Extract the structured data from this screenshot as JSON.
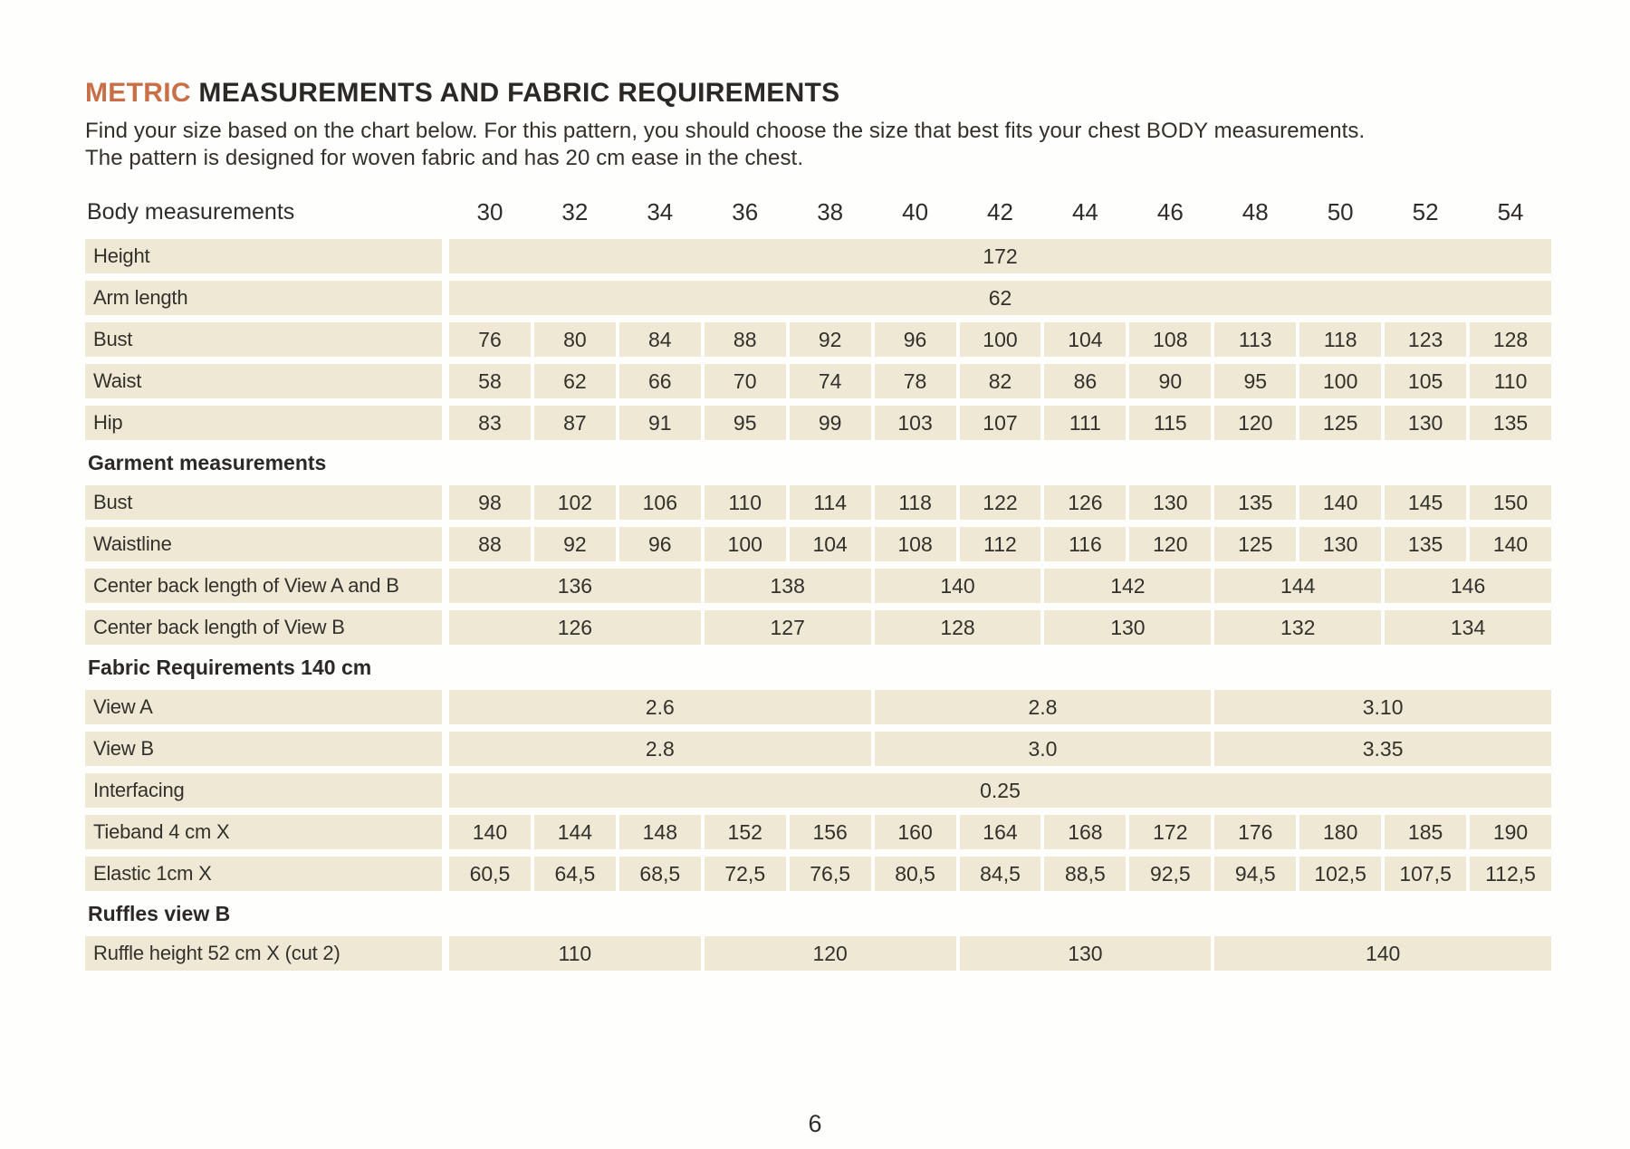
{
  "page": {
    "number": "6"
  },
  "colors": {
    "accent": "#C96F48",
    "cell_bg": "#EFE8D4",
    "text": "#2E2C29"
  },
  "header": {
    "title_accent": "METRIC",
    "title_rest": " MEASUREMENTS AND FABRIC REQUIREMENTS",
    "intro_line1": "Find your size based on the chart below. For this pattern, you should choose the size that best fits your chest BODY measurements.",
    "intro_line2": "The pattern is designed for woven fabric and has 20 cm ease in the chest."
  },
  "table": {
    "corner_label": "Body measurements",
    "sizes": [
      "30",
      "32",
      "34",
      "36",
      "38",
      "40",
      "42",
      "44",
      "46",
      "48",
      "50",
      "52",
      "54"
    ],
    "sections": [
      {
        "heading": null,
        "rows": [
          {
            "label": "Height",
            "cells": [
              [
                "172",
                13
              ]
            ]
          },
          {
            "label": "Arm length",
            "cells": [
              [
                "62",
                13
              ]
            ]
          },
          {
            "label": "Bust",
            "values": [
              "76",
              "80",
              "84",
              "88",
              "92",
              "96",
              "100",
              "104",
              "108",
              "113",
              "118",
              "123",
              "128"
            ]
          },
          {
            "label": "Waist",
            "values": [
              "58",
              "62",
              "66",
              "70",
              "74",
              "78",
              "82",
              "86",
              "90",
              "95",
              "100",
              "105",
              "110"
            ]
          },
          {
            "label": "Hip",
            "values": [
              "83",
              "87",
              "91",
              "95",
              "99",
              "103",
              "107",
              "111",
              "115",
              "120",
              "125",
              "130",
              "135"
            ]
          }
        ]
      },
      {
        "heading": "Garment measurements",
        "rows": [
          {
            "label": "Bust",
            "values": [
              "98",
              "102",
              "106",
              "110",
              "114",
              "118",
              "122",
              "126",
              "130",
              "135",
              "140",
              "145",
              "150"
            ]
          },
          {
            "label": "Waistline",
            "values": [
              "88",
              "92",
              "96",
              "100",
              "104",
              "108",
              "112",
              "116",
              "120",
              "125",
              "130",
              "135",
              "140"
            ]
          },
          {
            "label": "Center back length of View A and B",
            "cells": [
              [
                "136",
                3
              ],
              [
                "138",
                2
              ],
              [
                "140",
                2
              ],
              [
                "142",
                2
              ],
              [
                "144",
                2
              ],
              [
                "146",
                2
              ]
            ]
          },
          {
            "label": "Center back length of View  B",
            "cells": [
              [
                "126",
                3
              ],
              [
                "127",
                2
              ],
              [
                "128",
                2
              ],
              [
                "130",
                2
              ],
              [
                "132",
                2
              ],
              [
                "134",
                2
              ]
            ]
          }
        ]
      },
      {
        "heading": "Fabric Requirements 140 cm",
        "rows": [
          {
            "label": "View A",
            "cells": [
              [
                "2.6",
                5
              ],
              [
                "2.8",
                4
              ],
              [
                "3.10",
                4
              ]
            ]
          },
          {
            "label": "View B",
            "cells": [
              [
                "2.8",
                5
              ],
              [
                "3.0",
                4
              ],
              [
                "3.35",
                4
              ]
            ]
          },
          {
            "label": "Interfacing",
            "cells": [
              [
                "0.25",
                13
              ]
            ]
          },
          {
            "label": "Tieband 4 cm X",
            "values": [
              "140",
              "144",
              "148",
              "152",
              "156",
              "160",
              "164",
              "168",
              "172",
              "176",
              "180",
              "185",
              "190"
            ]
          },
          {
            "label": "Elastic 1cm X",
            "values": [
              "60,5",
              "64,5",
              "68,5",
              "72,5",
              "76,5",
              "80,5",
              "84,5",
              "88,5",
              "92,5",
              "94,5",
              "102,5",
              "107,5",
              "112,5"
            ]
          }
        ]
      },
      {
        "heading": "Ruffles view B",
        "rows": [
          {
            "label": "Ruffle height 52 cm  X (cut 2)",
            "cells": [
              [
                "110",
                3
              ],
              [
                "120",
                3
              ],
              [
                "130",
                3
              ],
              [
                "140",
                4
              ]
            ]
          }
        ]
      }
    ]
  }
}
